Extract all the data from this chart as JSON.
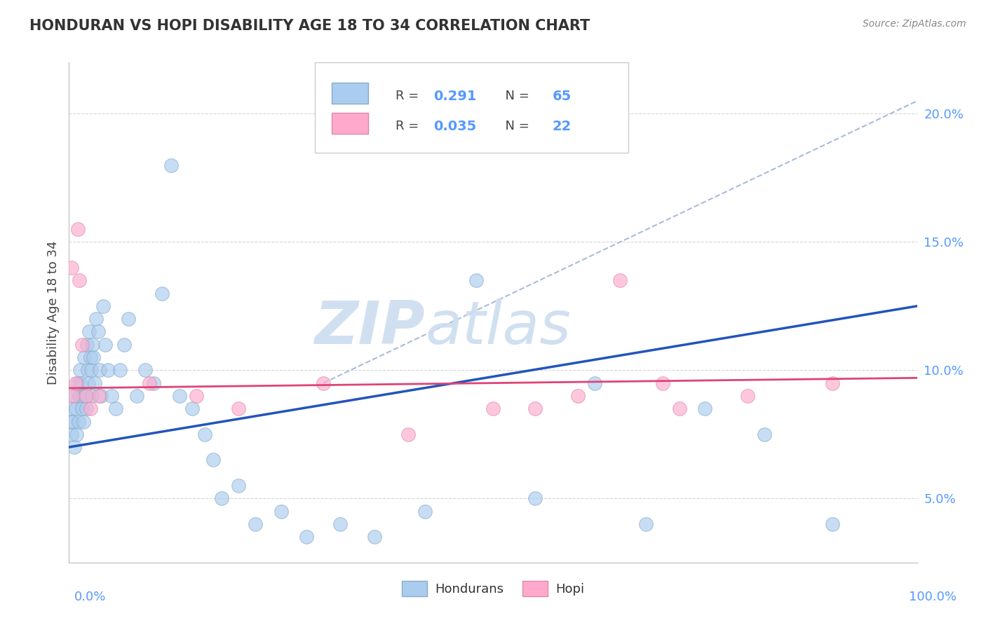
{
  "title": "HONDURAN VS HOPI DISABILITY AGE 18 TO 34 CORRELATION CHART",
  "source": "Source: ZipAtlas.com",
  "ylabel": "Disability Age 18 to 34",
  "xlim": [
    0.0,
    100.0
  ],
  "ylim": [
    2.5,
    22.0
  ],
  "yticks": [
    5.0,
    10.0,
    15.0,
    20.0
  ],
  "ytick_labels": [
    "5.0%",
    "10.0%",
    "15.0%",
    "20.0%"
  ],
  "grid_color": "#cccccc",
  "background_color": "#ffffff",
  "honduran_color": "#aaccee",
  "honduran_edge": "#88aacc",
  "hopi_color": "#ffaacc",
  "hopi_edge": "#dd88aa",
  "honduran_R": 0.291,
  "honduran_N": 65,
  "hopi_R": 0.035,
  "hopi_N": 22,
  "honduran_line_color": "#2255bb",
  "hopi_line_color": "#dd4477",
  "ref_line_color": "#aabbdd",
  "watermark_color": "#ccddf0",
  "tick_color": "#5599ff",
  "honduran_x": [
    0.2,
    0.3,
    0.4,
    0.5,
    0.6,
    0.7,
    0.8,
    0.9,
    1.0,
    1.1,
    1.2,
    1.3,
    1.4,
    1.5,
    1.6,
    1.7,
    1.8,
    1.9,
    2.0,
    2.1,
    2.2,
    2.3,
    2.4,
    2.5,
    2.6,
    2.7,
    2.8,
    2.9,
    3.0,
    3.2,
    3.4,
    3.6,
    3.8,
    4.0,
    4.3,
    4.6,
    5.0,
    5.5,
    6.0,
    6.5,
    7.0,
    8.0,
    9.0,
    10.0,
    11.0,
    12.0,
    13.0,
    14.5,
    16.0,
    17.0,
    18.0,
    20.0,
    22.0,
    25.0,
    28.0,
    32.0,
    36.0,
    42.0,
    48.0,
    55.0,
    62.0,
    68.0,
    75.0,
    82.0,
    90.0
  ],
  "honduran_y": [
    8.0,
    7.5,
    8.5,
    8.0,
    7.0,
    9.0,
    8.5,
    7.5,
    9.5,
    8.0,
    9.0,
    10.0,
    9.5,
    8.5,
    9.0,
    8.0,
    10.5,
    9.0,
    8.5,
    11.0,
    10.0,
    9.5,
    11.5,
    10.5,
    10.0,
    9.0,
    11.0,
    10.5,
    9.5,
    12.0,
    11.5,
    10.0,
    9.0,
    12.5,
    11.0,
    10.0,
    9.0,
    8.5,
    10.0,
    11.0,
    12.0,
    9.0,
    10.0,
    9.5,
    13.0,
    18.0,
    9.0,
    8.5,
    7.5,
    6.5,
    5.0,
    5.5,
    4.0,
    4.5,
    3.5,
    4.0,
    3.5,
    4.5,
    13.5,
    5.0,
    9.5,
    4.0,
    8.5,
    7.5,
    4.0
  ],
  "hopi_x": [
    0.3,
    0.5,
    0.8,
    1.0,
    1.2,
    1.5,
    2.0,
    2.5,
    3.5,
    9.5,
    15.0,
    20.0,
    30.0,
    40.0,
    50.0,
    55.0,
    60.0,
    65.0,
    70.0,
    72.0,
    80.0,
    90.0
  ],
  "hopi_y": [
    14.0,
    9.0,
    9.5,
    15.5,
    13.5,
    11.0,
    9.0,
    8.5,
    9.0,
    9.5,
    9.0,
    8.5,
    9.5,
    7.5,
    8.5,
    8.5,
    9.0,
    13.5,
    9.5,
    8.5,
    9.0,
    9.5
  ],
  "honduran_line_x": [
    0.0,
    100.0
  ],
  "honduran_line_y_start": 7.0,
  "honduran_line_y_end": 12.5,
  "hopi_line_y_start": 9.3,
  "hopi_line_y_end": 9.7,
  "ref_line_x_start": 30.0,
  "ref_line_x_end": 100.0,
  "ref_line_y_start": 9.5,
  "ref_line_y_end": 20.5
}
